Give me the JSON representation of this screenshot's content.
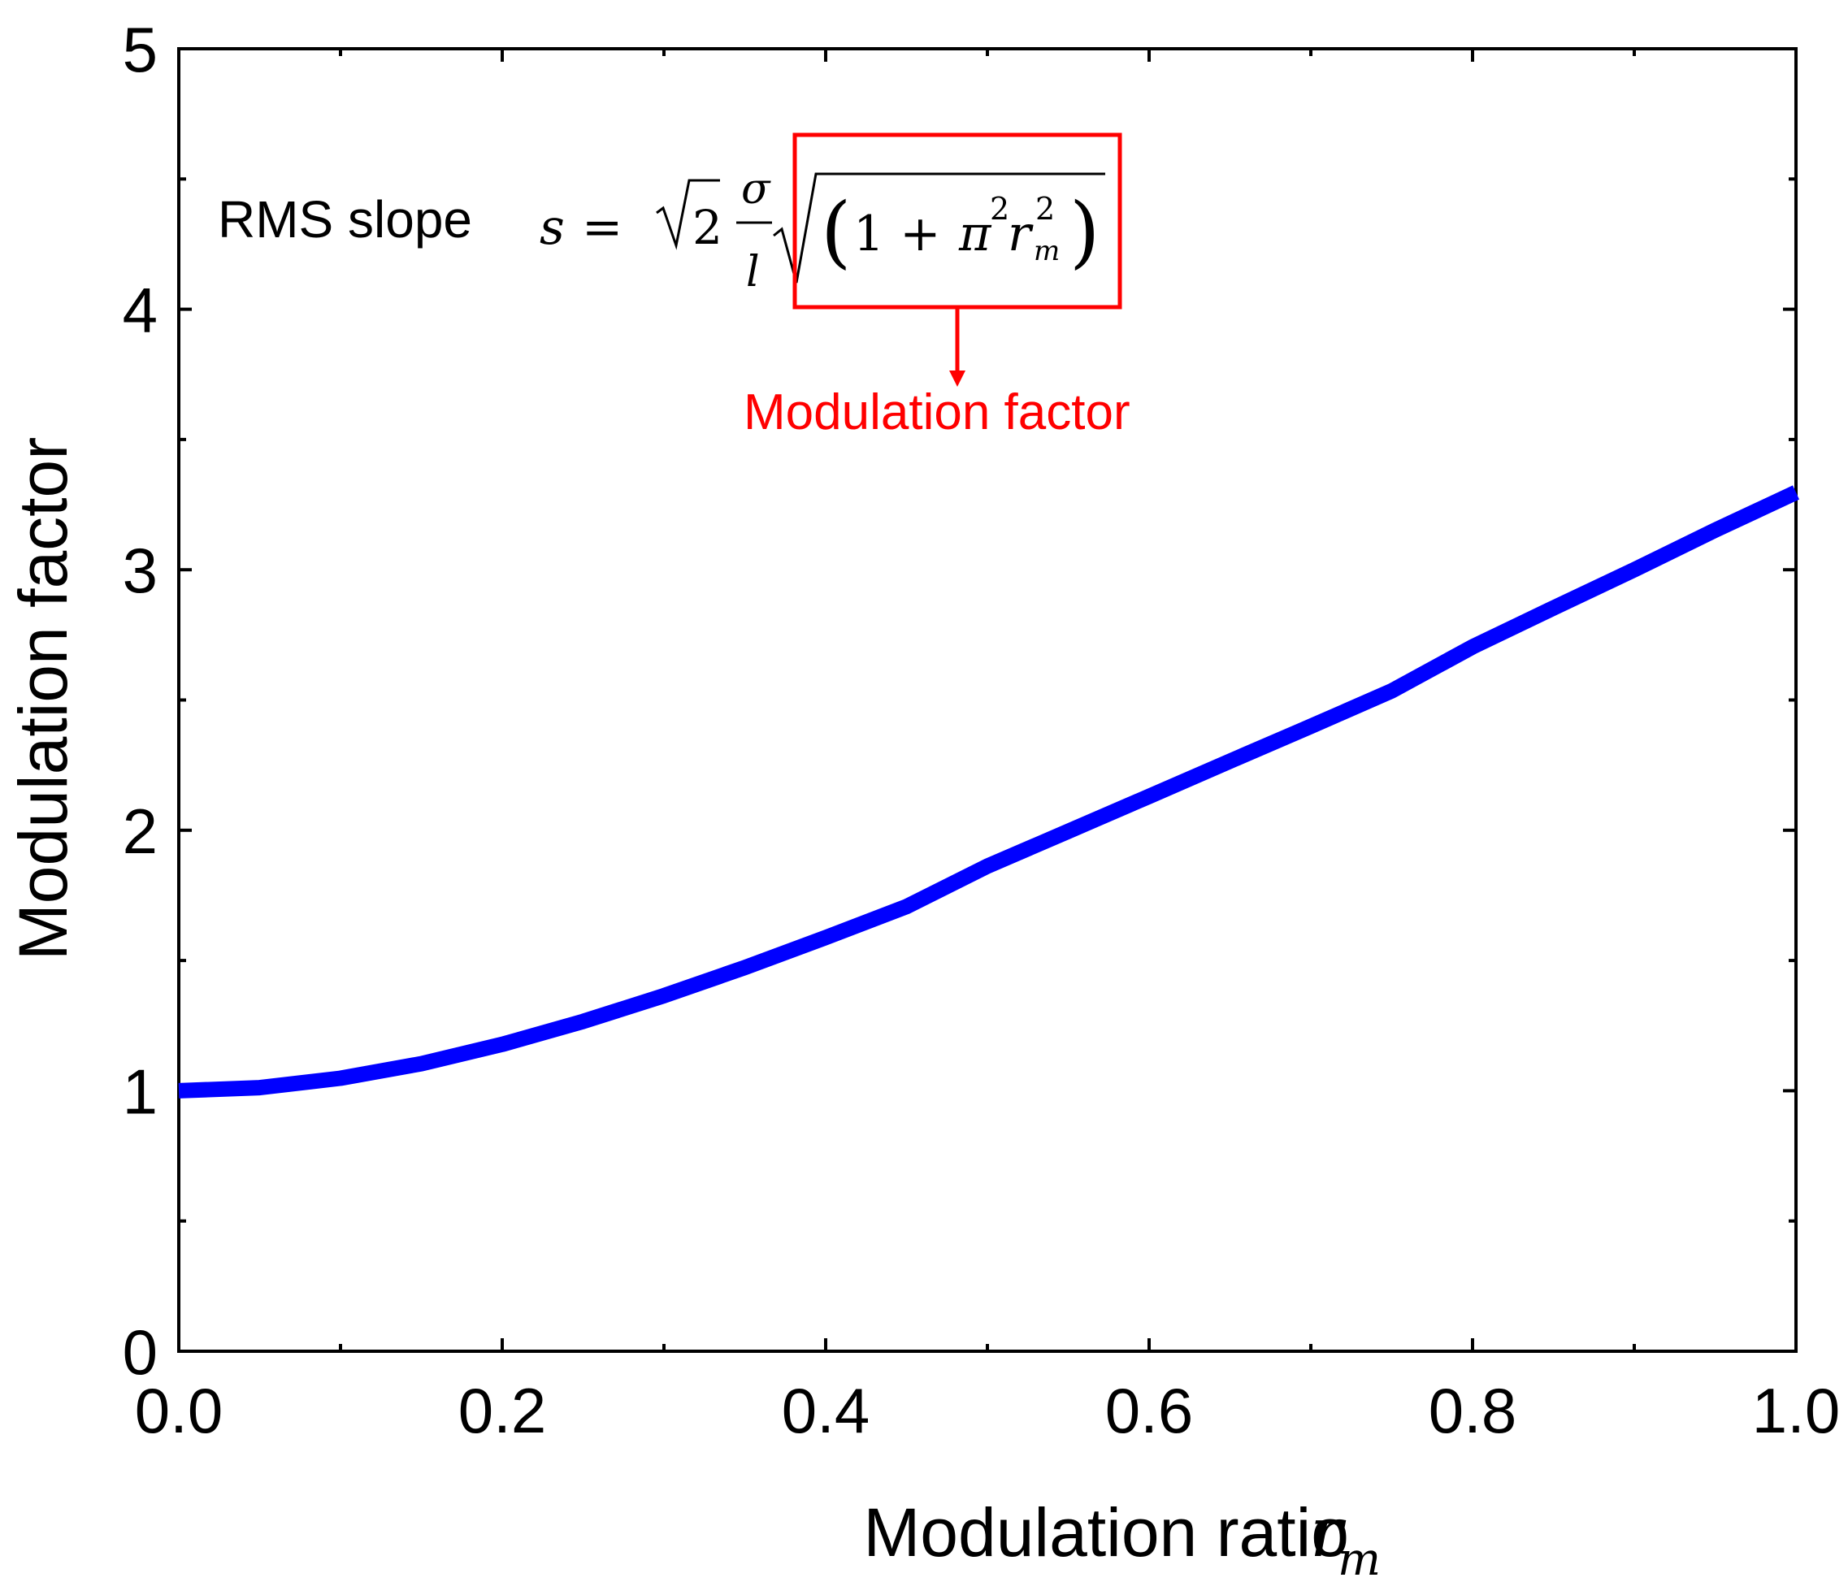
{
  "chart_data": {
    "type": "line",
    "title": "",
    "xlabel": "Modulation ratio",
    "xlabel_symbol": "r",
    "xlabel_subscript": "m",
    "ylabel": "Modulation factor",
    "xlim": [
      0.0,
      1.0
    ],
    "ylim": [
      0,
      5
    ],
    "x_tick_labels": [
      "0.0",
      "0.2",
      "0.4",
      "0.6",
      "0.8",
      "1.0"
    ],
    "y_tick_labels": [
      "0",
      "1",
      "2",
      "3",
      "4",
      "5"
    ],
    "x_minor_ticks": [
      0.1,
      0.3,
      0.5,
      0.7,
      0.9
    ],
    "y_minor_ticks": [
      0.5,
      1.5,
      2.5,
      3.5,
      4.5
    ],
    "grid": false,
    "series": [
      {
        "name": "sqrt(1 + pi^2 r_m^2)",
        "color": "#0000ff",
        "x": [
          0.0,
          0.05,
          0.1,
          0.15,
          0.2,
          0.25,
          0.3,
          0.35,
          0.4,
          0.45,
          0.5,
          0.55,
          0.6,
          0.65,
          0.7,
          0.75,
          0.8,
          0.85,
          0.9,
          0.95,
          1.0
        ],
        "y": [
          1.0,
          1.012,
          1.048,
          1.104,
          1.178,
          1.266,
          1.365,
          1.473,
          1.588,
          1.707,
          1.862,
          1.996,
          2.13,
          2.265,
          2.399,
          2.535,
          2.704,
          2.853,
          3.0,
          3.152,
          3.297
        ]
      }
    ],
    "annotations": {
      "formula_label": "RMS slope",
      "formula_lhs": "s",
      "formula_eq": "=",
      "formula_sqrt_arg": "2",
      "formula_num": "σ",
      "formula_den": "l",
      "formula_one_plus": "1 +",
      "formula_pi": "π",
      "formula_sq": "2",
      "formula_r": "r",
      "formula_r_sub": "m",
      "boxed_label": "Modulation factor",
      "highlight_color": "#ff0000"
    }
  }
}
